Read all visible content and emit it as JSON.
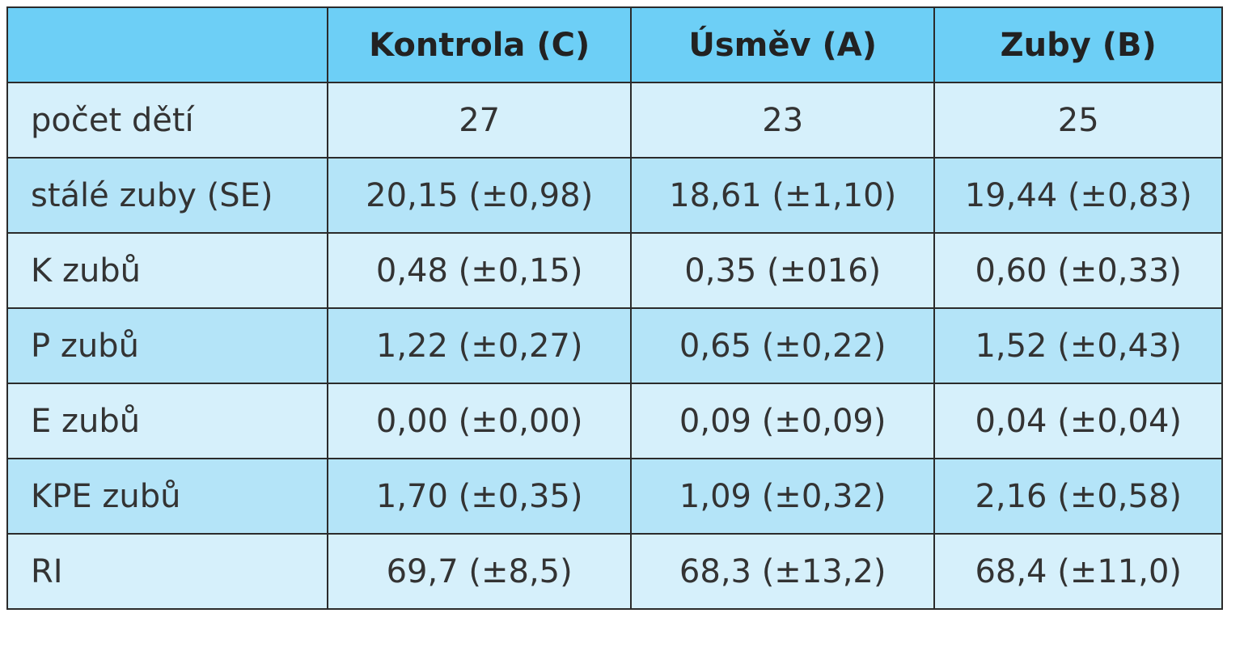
{
  "table": {
    "columns": [
      "Kontrola (C)",
      "Úsměv (A)",
      "Zuby (B)"
    ],
    "rows": [
      [
        "počet dětí",
        "27",
        "23",
        "25"
      ],
      [
        "stálé zuby (SE)",
        "20,15 (±0,98)",
        "18,61 (±1,10)",
        "19,44 (±0,83)"
      ],
      [
        "K zubů",
        "0,48 (±0,15)",
        "0,35 (±016)",
        "0,60 (±0,33)"
      ],
      [
        "P zubů",
        "1,22 (±0,27)",
        "0,65 (±0,22)",
        "1,52 (±0,43)"
      ],
      [
        "E zubů",
        "0,00 (±0,00)",
        "0,09 (±0,09)",
        "0,04 (±0,04)"
      ],
      [
        "KPE zubů",
        "1,70 (±0,35)",
        "1,09 (±0,32)",
        "2,16 (±0,58)"
      ],
      [
        "RI",
        "69,7 (±8,5)",
        "68,3 (±13,2)",
        "68,4 (±11,0)"
      ]
    ]
  }
}
